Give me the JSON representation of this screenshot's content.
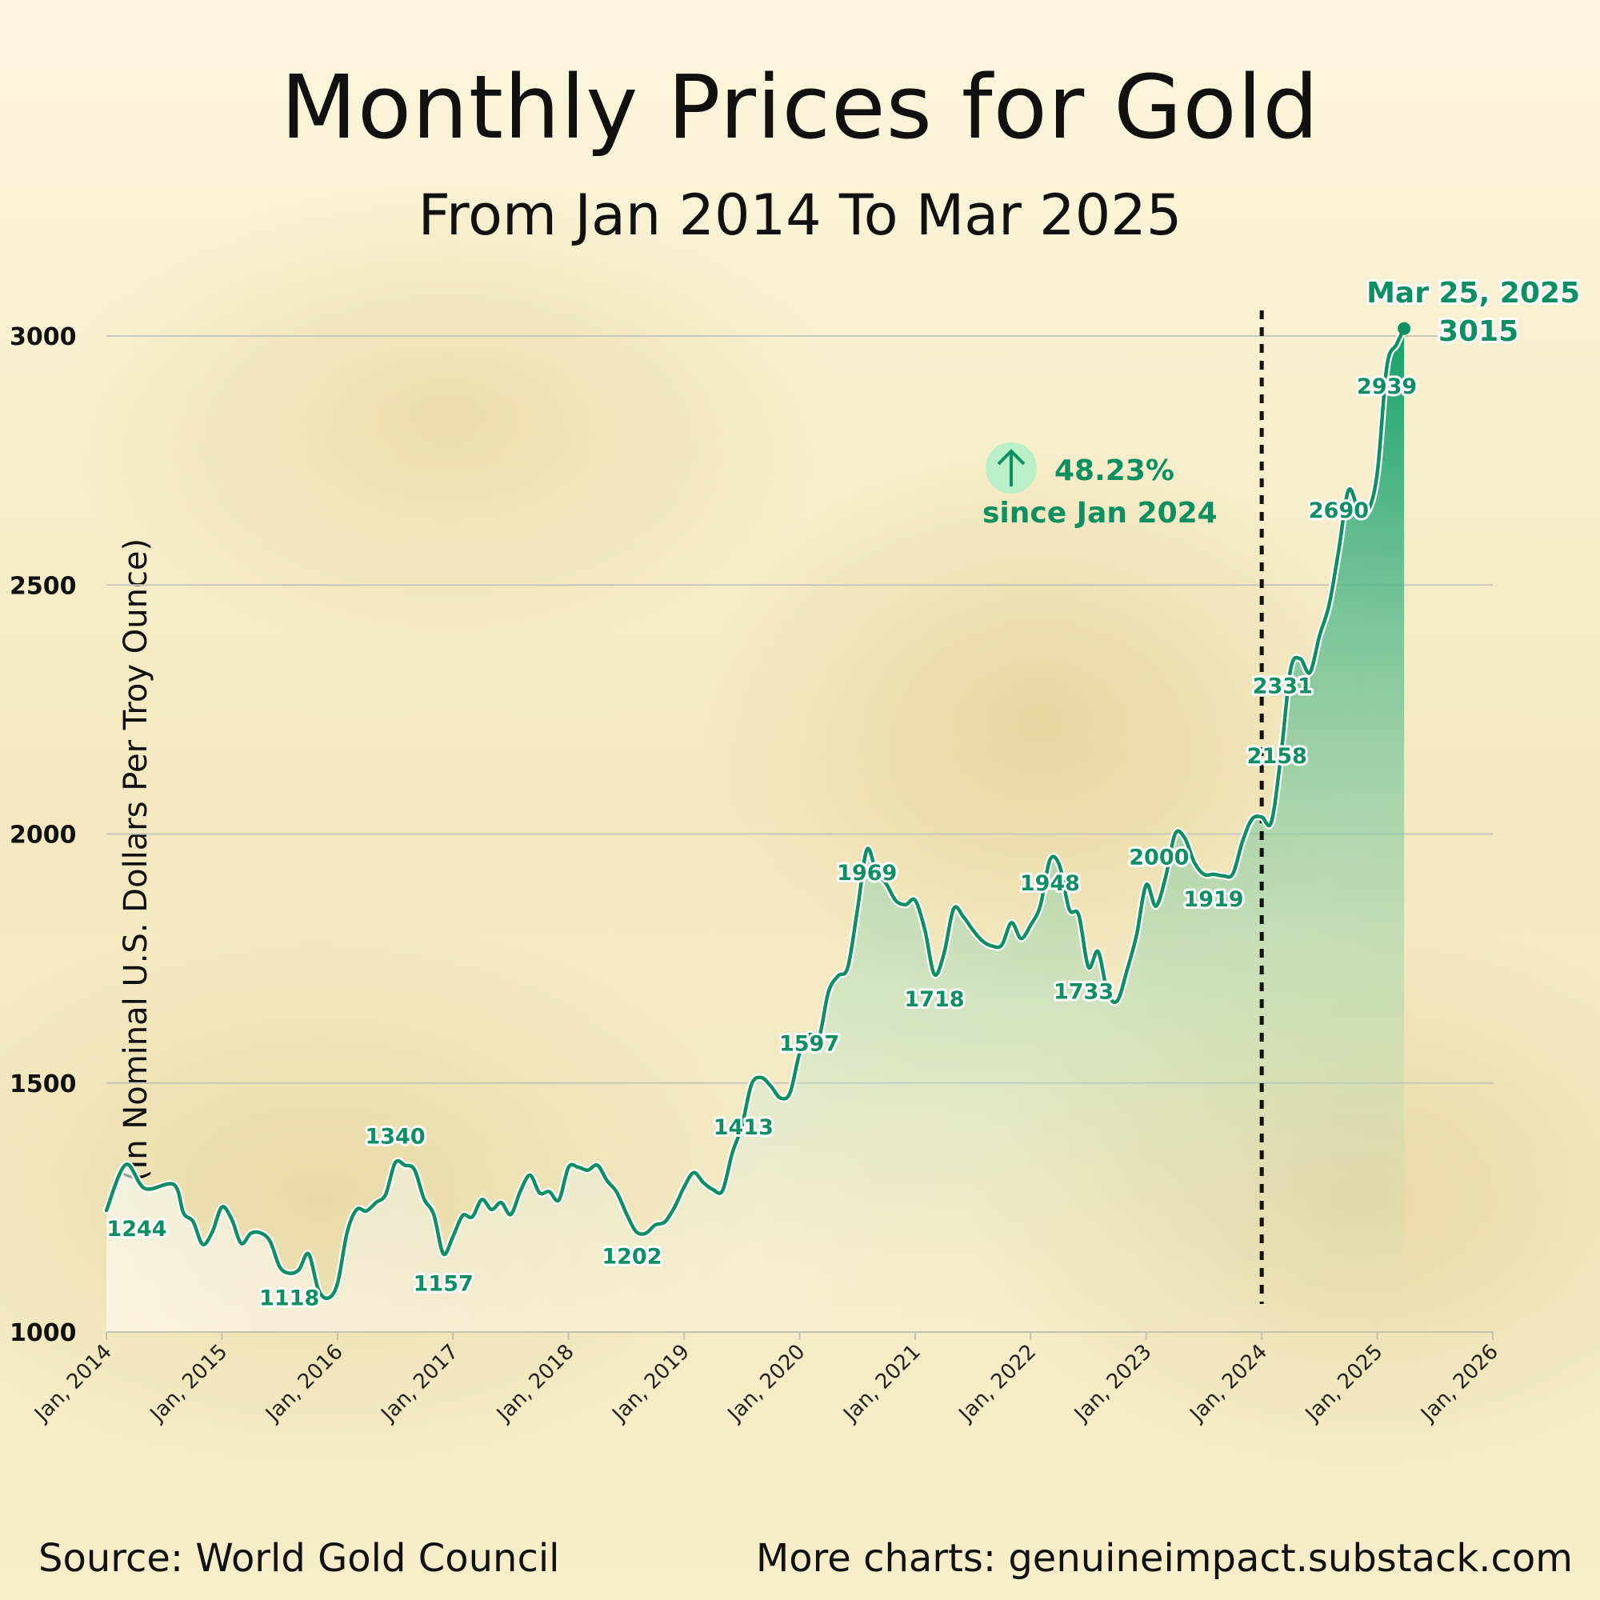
{
  "header": {
    "title": "Monthly Prices for Gold",
    "subtitle": "From Jan 2014 To Mar 2025"
  },
  "footer": {
    "source": "Source: World Gold Council",
    "more": "More charts: genuineimpact.substack.com"
  },
  "colors": {
    "line": "#0e8f62",
    "area_top": "#15a06a",
    "area_bottom": "#bfe8c8",
    "grid": "#c9c6bc",
    "vline": "#111111",
    "annotation_circle": "#b9f0c8"
  },
  "annotation": {
    "icon": "arrow-up-icon",
    "change": "48.23%",
    "since": "since Jan 2024"
  },
  "end_marker": {
    "date": "Mar 25, 2025",
    "value": "3015"
  },
  "chart_data": {
    "type": "area",
    "title": "Monthly Prices for Gold",
    "subtitle": "From Jan 2014 To Mar 2025",
    "ylabel": "(In Nominal U.S. Dollars Per Troy Ounce)",
    "xlabel": "",
    "ylim": [
      1000,
      3000
    ],
    "yticks": [
      1000,
      1500,
      2000,
      2500,
      3000
    ],
    "xlim": [
      "2014-01",
      "2026-01"
    ],
    "xticks": [
      "Jan, 2014",
      "Jan, 2015",
      "Jan, 2016",
      "Jan, 2017",
      "Jan, 2018",
      "Jan, 2019",
      "Jan, 2020",
      "Jan, 2021",
      "Jan, 2022",
      "Jan, 2023",
      "Jan, 2024",
      "Jan, 2025",
      "Jan, 2026"
    ],
    "grid": true,
    "reference_line": "2024-01",
    "series": [
      {
        "points": [
          [
            "2014-01",
            1244
          ],
          [
            "2014-03",
            1336
          ],
          [
            "2014-05",
            1288
          ],
          [
            "2014-08",
            1296
          ],
          [
            "2014-09",
            1239
          ],
          [
            "2014-10",
            1222
          ],
          [
            "2014-11",
            1176
          ],
          [
            "2014-12",
            1201
          ],
          [
            "2015-01",
            1251
          ],
          [
            "2015-02",
            1227
          ],
          [
            "2015-03",
            1178
          ],
          [
            "2015-04",
            1198
          ],
          [
            "2015-05",
            1199
          ],
          [
            "2015-06",
            1182
          ],
          [
            "2015-07",
            1131
          ],
          [
            "2015-08",
            1118
          ],
          [
            "2015-09",
            1125
          ],
          [
            "2015-10",
            1157
          ],
          [
            "2015-11",
            1086
          ],
          [
            "2015-12",
            1068
          ],
          [
            "2016-01",
            1097
          ],
          [
            "2016-02",
            1200
          ],
          [
            "2016-03",
            1246
          ],
          [
            "2016-04",
            1243
          ],
          [
            "2016-05",
            1260
          ],
          [
            "2016-06",
            1276
          ],
          [
            "2016-07",
            1340
          ],
          [
            "2016-08",
            1335
          ],
          [
            "2016-09",
            1326
          ],
          [
            "2016-10",
            1267
          ],
          [
            "2016-11",
            1236
          ],
          [
            "2016-12",
            1157
          ],
          [
            "2017-01",
            1192
          ],
          [
            "2017-02",
            1234
          ],
          [
            "2017-03",
            1231
          ],
          [
            "2017-04",
            1266
          ],
          [
            "2017-05",
            1246
          ],
          [
            "2017-06",
            1260
          ],
          [
            "2017-07",
            1236
          ],
          [
            "2017-08",
            1283
          ],
          [
            "2017-09",
            1315
          ],
          [
            "2017-10",
            1279
          ],
          [
            "2017-11",
            1282
          ],
          [
            "2017-12",
            1265
          ],
          [
            "2018-01",
            1331
          ],
          [
            "2018-02",
            1331
          ],
          [
            "2018-03",
            1325
          ],
          [
            "2018-04",
            1335
          ],
          [
            "2018-05",
            1304
          ],
          [
            "2018-06",
            1281
          ],
          [
            "2018-07",
            1238
          ],
          [
            "2018-08",
            1202
          ],
          [
            "2018-09",
            1198
          ],
          [
            "2018-10",
            1215
          ],
          [
            "2018-11",
            1221
          ],
          [
            "2018-12",
            1250
          ],
          [
            "2019-01",
            1291
          ],
          [
            "2019-02",
            1320
          ],
          [
            "2019-03",
            1300
          ],
          [
            "2019-04",
            1286
          ],
          [
            "2019-05",
            1284
          ],
          [
            "2019-06",
            1359
          ],
          [
            "2019-07",
            1413
          ],
          [
            "2019-08",
            1497
          ],
          [
            "2019-09",
            1511
          ],
          [
            "2019-10",
            1494
          ],
          [
            "2019-11",
            1470
          ],
          [
            "2019-12",
            1480
          ],
          [
            "2020-01",
            1560
          ],
          [
            "2020-02",
            1597
          ],
          [
            "2020-03",
            1591
          ],
          [
            "2020-04",
            1683
          ],
          [
            "2020-05",
            1715
          ],
          [
            "2020-06",
            1732
          ],
          [
            "2020-07",
            1847
          ],
          [
            "2020-08",
            1969
          ],
          [
            "2020-09",
            1921
          ],
          [
            "2020-10",
            1900
          ],
          [
            "2020-11",
            1866
          ],
          [
            "2020-12",
            1858
          ],
          [
            "2021-01",
            1867
          ],
          [
            "2021-02",
            1808
          ],
          [
            "2021-03",
            1718
          ],
          [
            "2021-04",
            1760
          ],
          [
            "2021-05",
            1850
          ],
          [
            "2021-06",
            1834
          ],
          [
            "2021-07",
            1807
          ],
          [
            "2021-08",
            1785
          ],
          [
            "2021-09",
            1775
          ],
          [
            "2021-10",
            1777
          ],
          [
            "2021-11",
            1822
          ],
          [
            "2021-12",
            1790
          ],
          [
            "2022-01",
            1817
          ],
          [
            "2022-02",
            1856
          ],
          [
            "2022-03",
            1948
          ],
          [
            "2022-04",
            1937
          ],
          [
            "2022-05",
            1849
          ],
          [
            "2022-06",
            1837
          ],
          [
            "2022-07",
            1733
          ],
          [
            "2022-08",
            1764
          ],
          [
            "2022-09",
            1681
          ],
          [
            "2022-10",
            1665
          ],
          [
            "2022-11",
            1726
          ],
          [
            "2022-12",
            1797
          ],
          [
            "2023-01",
            1898
          ],
          [
            "2023-02",
            1855
          ],
          [
            "2023-03",
            1912
          ],
          [
            "2023-04",
            2000
          ],
          [
            "2023-05",
            1992
          ],
          [
            "2023-06",
            1943
          ],
          [
            "2023-07",
            1919
          ],
          [
            "2023-08",
            1919
          ],
          [
            "2023-09",
            1916
          ],
          [
            "2023-10",
            1920
          ],
          [
            "2023-11",
            1985
          ],
          [
            "2023-12",
            2030
          ],
          [
            "2024-01",
            2034
          ],
          [
            "2024-02",
            2024
          ],
          [
            "2024-03",
            2158
          ],
          [
            "2024-04",
            2331
          ],
          [
            "2024-05",
            2352
          ],
          [
            "2024-06",
            2324
          ],
          [
            "2024-07",
            2398
          ],
          [
            "2024-08",
            2460
          ],
          [
            "2024-09",
            2570
          ],
          [
            "2024-10",
            2690
          ],
          [
            "2024-11",
            2655
          ],
          [
            "2024-12",
            2648
          ],
          [
            "2025-01",
            2725
          ],
          [
            "2025-02",
            2939
          ],
          [
            "2025-03",
            2983
          ],
          [
            "2025-03-25",
            3015
          ]
        ]
      }
    ],
    "data_labels": [
      {
        "x": "2014-01",
        "value": "1244"
      },
      {
        "x": "2015-08",
        "value": "1118"
      },
      {
        "x": "2016-07",
        "value": "1340"
      },
      {
        "x": "2016-12",
        "value": "1157"
      },
      {
        "x": "2018-08",
        "value": "1202"
      },
      {
        "x": "2019-07",
        "value": "1413"
      },
      {
        "x": "2020-02",
        "value": "1597"
      },
      {
        "x": "2020-08",
        "value": "1969"
      },
      {
        "x": "2021-03",
        "value": "1718"
      },
      {
        "x": "2022-03",
        "value": "1948"
      },
      {
        "x": "2022-07",
        "value": "1733"
      },
      {
        "x": "2023-04",
        "value": "2000"
      },
      {
        "x": "2023-08",
        "value": "1919"
      },
      {
        "x": "2024-03",
        "value": "2158"
      },
      {
        "x": "2024-04",
        "value": "2331"
      },
      {
        "x": "2024-10",
        "value": "2690"
      },
      {
        "x": "2025-02",
        "value": "2939"
      }
    ]
  }
}
